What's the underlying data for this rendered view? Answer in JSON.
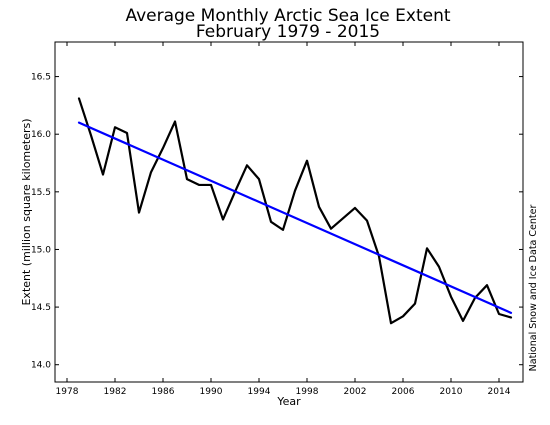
{
  "chart_data": {
    "type": "line",
    "title": "Average Monthly Arctic Sea Ice Extent",
    "subtitle": "February 1979 - 2015",
    "xlabel": "Year",
    "ylabel": "Extent (million square kilometers)",
    "credit": "National Snow and Ice Data Center",
    "xlim": [
      1977,
      2016
    ],
    "ylim": [
      13.85,
      16.8
    ],
    "xticks": [
      1978,
      1982,
      1986,
      1990,
      1994,
      1998,
      2002,
      2006,
      2010,
      2014
    ],
    "yticks": [
      14.0,
      14.5,
      15.0,
      15.5,
      16.0,
      16.5
    ],
    "grid": false,
    "series": [
      {
        "color": "#000000",
        "x": [
          1979,
          1980,
          1981,
          1982,
          1983,
          1984,
          1985,
          1986,
          1987,
          1988,
          1989,
          1990,
          1991,
          1992,
          1993,
          1994,
          1995,
          1996,
          1997,
          1998,
          1999,
          2000,
          2001,
          2002,
          2003,
          2004,
          2005,
          2006,
          2007,
          2008,
          2009,
          2010,
          2011,
          2012,
          2013,
          2014,
          2015
        ],
        "values": [
          16.31,
          15.99,
          15.65,
          16.06,
          16.01,
          15.32,
          15.67,
          15.88,
          16.11,
          15.61,
          15.56,
          15.56,
          15.26,
          15.5,
          15.73,
          15.61,
          15.24,
          15.17,
          15.51,
          15.77,
          15.37,
          15.18,
          15.27,
          15.36,
          15.25,
          14.94,
          14.36,
          14.42,
          14.53,
          15.01,
          14.85,
          14.59,
          14.38,
          14.58,
          14.69,
          14.44,
          14.41
        ]
      },
      {
        "color": "#0000ff",
        "x": [
          1979,
          2015
        ],
        "values": [
          16.1,
          14.45
        ]
      }
    ]
  }
}
